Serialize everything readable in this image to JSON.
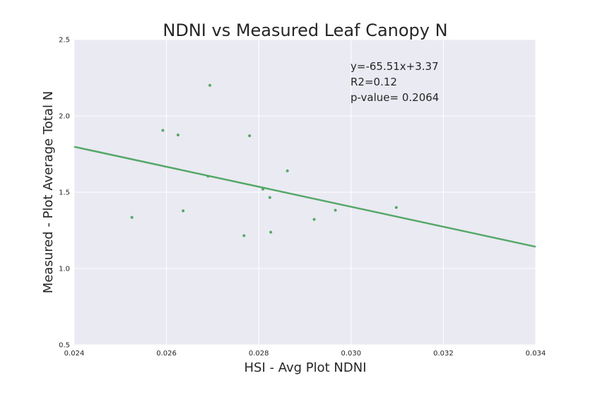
{
  "chart_data": {
    "type": "scatter",
    "title": "NDNI vs Measured Leaf Canopy N",
    "xlabel": "HSI - Avg Plot NDNI",
    "ylabel": "Measured - Plot Average Total N",
    "xlim": [
      0.024,
      0.034
    ],
    "ylim": [
      0.5,
      2.5
    ],
    "x_ticks": [
      "0.024",
      "0.026",
      "0.028",
      "0.030",
      "0.032",
      "0.034"
    ],
    "y_ticks": [
      "0.5",
      "1.0",
      "1.5",
      "2.0",
      "2.5"
    ],
    "grid": true,
    "points": [
      {
        "x": 0.02525,
        "y": 1.335
      },
      {
        "x": 0.02592,
        "y": 1.905
      },
      {
        "x": 0.02625,
        "y": 1.875
      },
      {
        "x": 0.02636,
        "y": 1.378
      },
      {
        "x": 0.0269,
        "y": 1.605
      },
      {
        "x": 0.02694,
        "y": 2.2
      },
      {
        "x": 0.02768,
        "y": 1.215
      },
      {
        "x": 0.0278,
        "y": 1.87
      },
      {
        "x": 0.02809,
        "y": 1.52
      },
      {
        "x": 0.02824,
        "y": 1.465
      },
      {
        "x": 0.02826,
        "y": 1.238
      },
      {
        "x": 0.02862,
        "y": 1.64
      },
      {
        "x": 0.0292,
        "y": 1.322
      },
      {
        "x": 0.02966,
        "y": 1.382
      },
      {
        "x": 0.03098,
        "y": 1.4
      }
    ],
    "fit_line": {
      "slope": -65.51,
      "intercept": 3.37
    },
    "point_color": "#55a868",
    "line_color": "#55a868",
    "plot_background": "#eaeaf2",
    "annotations": [
      "y=-65.51x+3.37",
      "R2=0.12",
      "p-value= 0.2064"
    ]
  }
}
